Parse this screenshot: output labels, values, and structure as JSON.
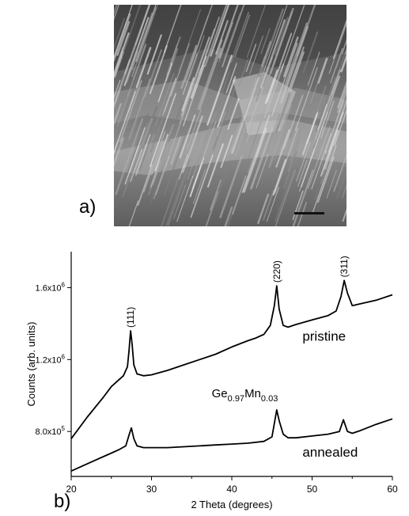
{
  "panel_a": {
    "label": "a)"
  },
  "panel_b": {
    "label": "b)"
  },
  "chart_data": {
    "type": "line",
    "xlabel": "2 Theta (degrees)",
    "ylabel": "Counts (arb. units)",
    "xlim": [
      20,
      60
    ],
    "ylim": [
      550000,
      1800000
    ],
    "xticks": [
      20,
      30,
      40,
      50,
      60
    ],
    "yticks": [
      {
        "value": 800000,
        "mantissa": "8.0x10",
        "exp": "5"
      },
      {
        "value": 1200000,
        "mantissa": "1.2x10",
        "exp": "6"
      },
      {
        "value": 1600000,
        "mantissa": "1.6x10",
        "exp": "6"
      }
    ],
    "annotation": {
      "base": "Ge",
      "sub1": "0.97",
      "mid": "Mn",
      "sub2": "0.03"
    },
    "peaks": [
      {
        "label": "(111)",
        "x": 27.4
      },
      {
        "label": "(220)",
        "x": 45.6
      },
      {
        "label": "(311)",
        "x": 54.0
      }
    ],
    "series": [
      {
        "name": "pristine",
        "x": [
          20,
          22,
          24,
          25,
          26,
          26.5,
          27,
          27.2,
          27.4,
          27.6,
          27.8,
          28.2,
          29,
          30,
          32,
          34,
          36,
          38,
          40,
          42,
          43,
          44,
          44.8,
          45.3,
          45.6,
          45.9,
          46.4,
          47,
          48,
          50,
          52,
          53,
          53.6,
          54,
          54.4,
          55,
          56,
          58,
          60
        ],
        "y": [
          760000,
          880000,
          990000,
          1050000,
          1090000,
          1110000,
          1160000,
          1250000,
          1360000,
          1280000,
          1170000,
          1120000,
          1110000,
          1115000,
          1140000,
          1170000,
          1200000,
          1230000,
          1270000,
          1305000,
          1320000,
          1340000,
          1390000,
          1500000,
          1610000,
          1480000,
          1390000,
          1380000,
          1395000,
          1420000,
          1445000,
          1470000,
          1550000,
          1640000,
          1570000,
          1500000,
          1510000,
          1530000,
          1560000
        ]
      },
      {
        "name": "annealed",
        "x": [
          20,
          22,
          24,
          25,
          26,
          26.8,
          27.2,
          27.5,
          27.8,
          28.2,
          29,
          30,
          32,
          34,
          36,
          38,
          40,
          42,
          44,
          45,
          45.4,
          45.6,
          45.9,
          46.4,
          47,
          48,
          50,
          52,
          53.4,
          53.9,
          54.4,
          55,
          56,
          58,
          60
        ],
        "y": [
          580000,
          620000,
          660000,
          680000,
          700000,
          720000,
          780000,
          820000,
          760000,
          720000,
          710000,
          710000,
          710000,
          715000,
          720000,
          725000,
          730000,
          735000,
          745000,
          770000,
          870000,
          920000,
          860000,
          785000,
          765000,
          765000,
          775000,
          785000,
          800000,
          865000,
          800000,
          790000,
          805000,
          840000,
          870000
        ]
      }
    ]
  }
}
